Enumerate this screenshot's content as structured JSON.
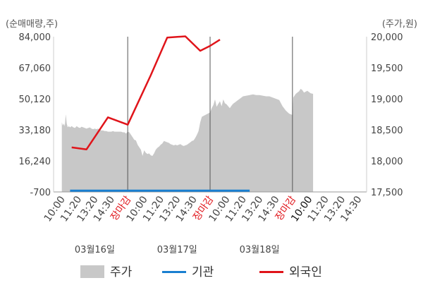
{
  "chart_data": {
    "type": "line",
    "left_axis": {
      "unit_label": "(순매매량,주)",
      "ticks": [
        "84,000",
        "67,060",
        "50,120",
        "33,180",
        "16,240",
        "-700"
      ],
      "range": [
        -700,
        84000
      ]
    },
    "right_axis": {
      "unit_label": "(주가,원)",
      "ticks": [
        "20,000",
        "19,500",
        "19,000",
        "18,500",
        "18,000",
        "17,500"
      ],
      "range": [
        17500,
        20000
      ]
    },
    "x_ticks": [
      {
        "label": "10:00",
        "style": "normal"
      },
      {
        "label": "11:20",
        "style": "normal"
      },
      {
        "label": "13:20",
        "style": "normal"
      },
      {
        "label": "14:30",
        "style": "normal"
      },
      {
        "label": "장마감",
        "style": "close"
      },
      {
        "label": "10:00",
        "style": "normal"
      },
      {
        "label": "11:20",
        "style": "normal"
      },
      {
        "label": "13:20",
        "style": "normal"
      },
      {
        "label": "14:30",
        "style": "normal"
      },
      {
        "label": "장마감",
        "style": "close"
      },
      {
        "label": "10:00",
        "style": "normal"
      },
      {
        "label": "11:20",
        "style": "normal"
      },
      {
        "label": "13:20",
        "style": "normal"
      },
      {
        "label": "14:30",
        "style": "normal"
      },
      {
        "label": "장마감",
        "style": "close"
      },
      {
        "label": "10:00",
        "style": "dark"
      },
      {
        "label": "11:20",
        "style": "normal"
      },
      {
        "label": "13:20",
        "style": "normal"
      },
      {
        "label": "14:30",
        "style": "normal"
      }
    ],
    "dates": [
      {
        "label": "03월16일",
        "tick_index": 2
      },
      {
        "label": "03월17일",
        "tick_index": 7
      },
      {
        "label": "03월18일",
        "tick_index": 12
      }
    ],
    "session_dividers": [
      4,
      9,
      14
    ],
    "series": [
      {
        "name": "주가",
        "kind": "area",
        "axis": "right",
        "color": "#c8c8c8",
        "points": [
          [
            0.0,
            18620
          ],
          [
            0.06,
            18570
          ],
          [
            0.12,
            18600
          ],
          [
            0.18,
            18560
          ],
          [
            0.24,
            18750
          ],
          [
            0.3,
            18600
          ],
          [
            0.36,
            18540
          ],
          [
            0.42,
            18560
          ],
          [
            0.5,
            18540
          ],
          [
            0.6,
            18560
          ],
          [
            0.7,
            18540
          ],
          [
            0.8,
            18530
          ],
          [
            0.9,
            18560
          ],
          [
            1.0,
            18540
          ],
          [
            1.1,
            18530
          ],
          [
            1.2,
            18550
          ],
          [
            1.3,
            18540
          ],
          [
            1.4,
            18530
          ],
          [
            1.5,
            18520
          ],
          [
            1.6,
            18530
          ],
          [
            1.7,
            18540
          ],
          [
            1.8,
            18520
          ],
          [
            1.9,
            18510
          ],
          [
            2.0,
            18520
          ],
          [
            2.1,
            18510
          ],
          [
            2.2,
            18520
          ],
          [
            2.3,
            18500
          ],
          [
            2.4,
            18490
          ],
          [
            2.5,
            18490
          ],
          [
            2.6,
            18480
          ],
          [
            2.7,
            18480
          ],
          [
            2.8,
            18470
          ],
          [
            2.9,
            18470
          ],
          [
            3.0,
            18470
          ],
          [
            3.1,
            18480
          ],
          [
            3.2,
            18470
          ],
          [
            3.3,
            18470
          ],
          [
            3.4,
            18470
          ],
          [
            3.5,
            18470
          ],
          [
            3.6,
            18470
          ],
          [
            3.7,
            18460
          ],
          [
            3.8,
            18460
          ],
          [
            3.9,
            18440
          ],
          [
            4.0,
            18470
          ],
          [
            4.1,
            18460
          ],
          [
            4.2,
            18420
          ],
          [
            4.3,
            18380
          ],
          [
            4.4,
            18340
          ],
          [
            4.5,
            18330
          ],
          [
            4.6,
            18260
          ],
          [
            4.7,
            18220
          ],
          [
            4.8,
            18180
          ],
          [
            4.9,
            18080
          ],
          [
            5.0,
            18170
          ],
          [
            5.1,
            18130
          ],
          [
            5.2,
            18110
          ],
          [
            5.3,
            18120
          ],
          [
            5.4,
            18090
          ],
          [
            5.5,
            18080
          ],
          [
            5.6,
            18120
          ],
          [
            5.7,
            18180
          ],
          [
            5.8,
            18210
          ],
          [
            5.9,
            18230
          ],
          [
            6.0,
            18260
          ],
          [
            6.1,
            18280
          ],
          [
            6.2,
            18320
          ],
          [
            6.3,
            18310
          ],
          [
            6.4,
            18300
          ],
          [
            6.5,
            18290
          ],
          [
            6.6,
            18270
          ],
          [
            6.7,
            18260
          ],
          [
            6.8,
            18250
          ],
          [
            6.9,
            18260
          ],
          [
            7.0,
            18250
          ],
          [
            7.1,
            18260
          ],
          [
            7.2,
            18270
          ],
          [
            7.3,
            18250
          ],
          [
            7.4,
            18240
          ],
          [
            7.5,
            18250
          ],
          [
            7.6,
            18260
          ],
          [
            7.7,
            18280
          ],
          [
            7.8,
            18300
          ],
          [
            7.9,
            18320
          ],
          [
            8.0,
            18330
          ],
          [
            8.1,
            18370
          ],
          [
            8.2,
            18420
          ],
          [
            8.3,
            18480
          ],
          [
            8.4,
            18620
          ],
          [
            8.5,
            18710
          ],
          [
            9.0,
            18780
          ],
          [
            9.1,
            18850
          ],
          [
            9.2,
            18900
          ],
          [
            9.3,
            18990
          ],
          [
            9.4,
            18870
          ],
          [
            9.5,
            18920
          ],
          [
            9.6,
            18960
          ],
          [
            9.7,
            18880
          ],
          [
            9.8,
            18990
          ],
          [
            9.9,
            18930
          ],
          [
            10.0,
            18910
          ],
          [
            10.1,
            18880
          ],
          [
            10.2,
            18850
          ],
          [
            10.3,
            18890
          ],
          [
            10.4,
            18920
          ],
          [
            10.5,
            18940
          ],
          [
            10.6,
            18960
          ],
          [
            10.7,
            18980
          ],
          [
            10.8,
            19000
          ],
          [
            10.9,
            19020
          ],
          [
            11.0,
            19040
          ],
          [
            11.2,
            19050
          ],
          [
            11.4,
            19060
          ],
          [
            11.6,
            19070
          ],
          [
            11.8,
            19060
          ],
          [
            12.0,
            19060
          ],
          [
            12.2,
            19050
          ],
          [
            12.4,
            19040
          ],
          [
            12.6,
            19040
          ],
          [
            12.8,
            19020
          ],
          [
            13.0,
            19000
          ],
          [
            13.2,
            18980
          ],
          [
            13.4,
            18880
          ],
          [
            13.6,
            18810
          ],
          [
            13.8,
            18760
          ],
          [
            14.0,
            18740
          ],
          [
            14.05,
            19020
          ],
          [
            14.2,
            19080
          ],
          [
            14.4,
            19120
          ],
          [
            14.5,
            19160
          ],
          [
            14.6,
            19140
          ],
          [
            14.7,
            19100
          ],
          [
            14.9,
            19130
          ],
          [
            15.1,
            19090
          ],
          [
            15.25,
            19080
          ]
        ]
      },
      {
        "name": "기관",
        "kind": "line",
        "axis": "left",
        "color": "#1a7fd0",
        "points": [
          [
            0.5,
            0
          ],
          [
            11.4,
            0
          ]
        ]
      },
      {
        "name": "외국인",
        "kind": "line",
        "axis": "left",
        "color": "#e0141a",
        "points": [
          [
            0.6,
            23600
          ],
          [
            1.5,
            22500
          ],
          [
            2.8,
            40000
          ],
          [
            4.0,
            36000
          ],
          [
            5.4,
            63000
          ],
          [
            6.4,
            83500
          ],
          [
            7.5,
            84200
          ],
          [
            8.4,
            76300
          ],
          [
            9.0,
            79000
          ],
          [
            9.6,
            82400
          ]
        ]
      }
    ],
    "legend": [
      "주가",
      "기관",
      "외국인"
    ],
    "legend_position": "bottom"
  }
}
